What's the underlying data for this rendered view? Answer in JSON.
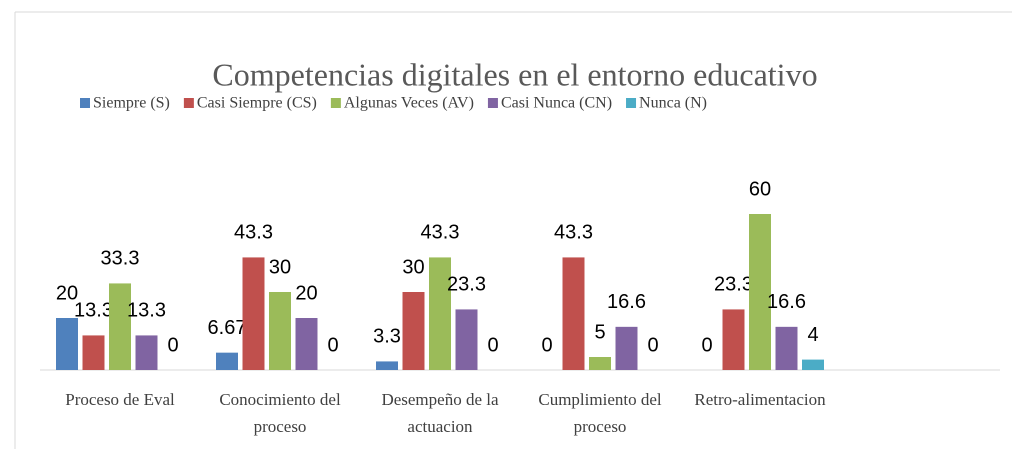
{
  "chart_data": {
    "type": "bar",
    "title": "Competencias digitales en el entorno educativo",
    "categories": [
      "Proceso de Eval",
      "Conocimiento del proceso",
      "Desempeño de la actuacion",
      "Cumplimiento del proceso",
      "Retro-alimentacion",
      null
    ],
    "series": [
      {
        "name": "Siempre (S)",
        "color": "#4f81bd",
        "values": [
          20,
          6.67,
          3.3,
          0,
          0,
          null
        ]
      },
      {
        "name": "Casi Siempre (CS)",
        "color": "#c0504d",
        "values": [
          13.3,
          43.3,
          30,
          43.3,
          23.3,
          null
        ]
      },
      {
        "name": "Algunas Veces (AV)",
        "color": "#9bbb59",
        "values": [
          33.3,
          30,
          43.3,
          5,
          60,
          null
        ]
      },
      {
        "name": "Casi Nunca (CN)",
        "color": "#8064a2",
        "values": [
          13.3,
          20,
          23.3,
          16.6,
          16.6,
          null
        ]
      },
      {
        "name": "Nunca (N)",
        "color": "#4bacc6",
        "values": [
          0,
          0,
          0,
          0,
          4,
          null
        ]
      }
    ],
    "legend": "top"
  }
}
